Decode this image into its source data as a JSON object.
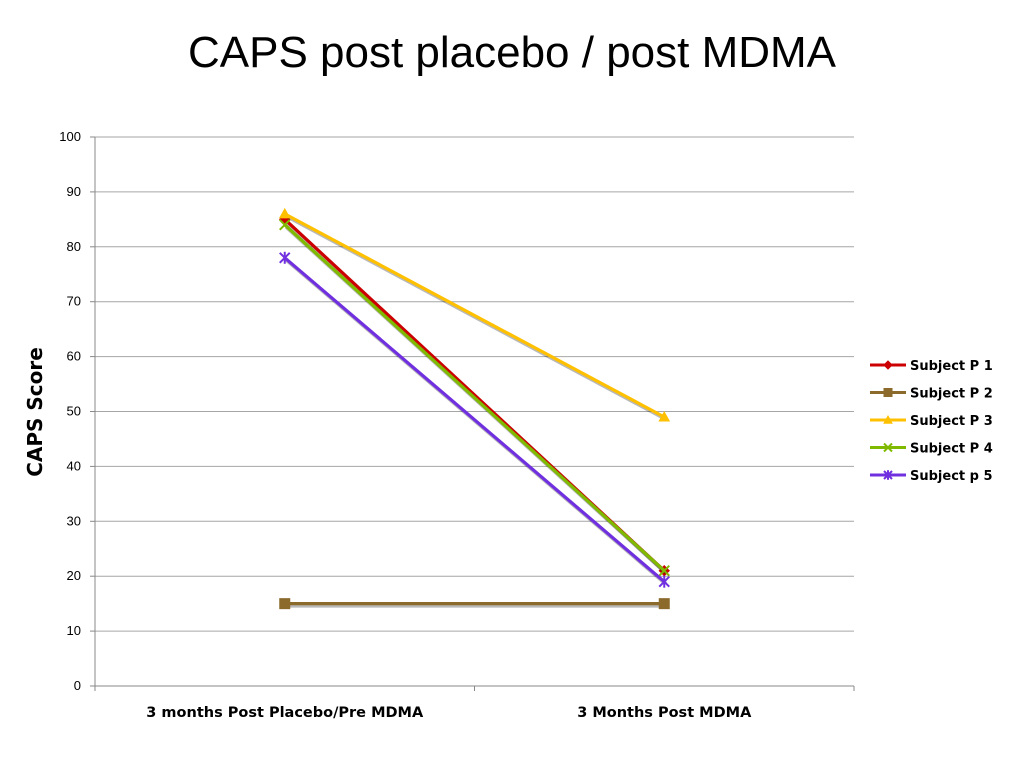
{
  "chart_data": {
    "type": "line",
    "title": "CAPS post placebo / post MDMA",
    "xlabel": "",
    "ylabel": "CAPS Score",
    "categories": [
      "3 months Post Placebo/Pre MDMA",
      "3 Months Post MDMA"
    ],
    "ylim": [
      0,
      100
    ],
    "yticks": [
      0,
      10,
      20,
      30,
      40,
      50,
      60,
      70,
      80,
      90,
      100
    ],
    "grid": true,
    "legend_position": "right",
    "series": [
      {
        "name": "Subject P 1",
        "values": [
          85,
          21
        ],
        "color": "#cc0000",
        "marker": "diamond"
      },
      {
        "name": "Subject P 2",
        "values": [
          15,
          15
        ],
        "color": "#8b6a2c",
        "marker": "square"
      },
      {
        "name": "Subject P 3",
        "values": [
          86,
          49
        ],
        "color": "#ffc000",
        "marker": "triangle"
      },
      {
        "name": "Subject P 4",
        "values": [
          84,
          21
        ],
        "color": "#7fba00",
        "marker": "x"
      },
      {
        "name": "Subject p 5",
        "values": [
          78,
          19
        ],
        "color": "#7030e0",
        "marker": "star"
      }
    ]
  }
}
